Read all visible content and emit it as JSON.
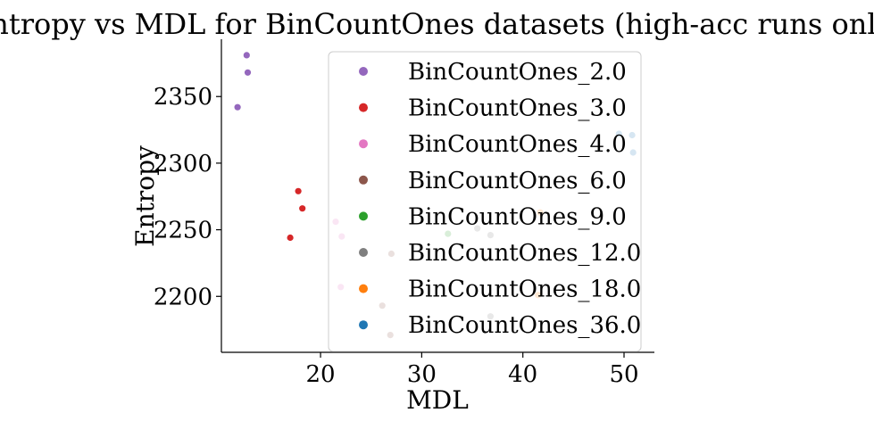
{
  "chart_data": {
    "type": "scatter",
    "title": "Entropy vs MDL for BinCountOnes datasets (high-acc runs only)",
    "xlabel": "MDL",
    "ylabel": "Entropy",
    "xlim": [
      10.2,
      53
    ],
    "ylim": [
      2158,
      2393
    ],
    "xticks": [
      20,
      30,
      40,
      50
    ],
    "yticks": [
      2200,
      2250,
      2300,
      2350
    ],
    "grid": false,
    "legend_position": "right",
    "series": [
      {
        "name": "BinCountOnes_2.0",
        "color": "#9467bd",
        "points": [
          [
            12.7,
            2381
          ],
          [
            12.8,
            2368
          ],
          [
            11.8,
            2342
          ]
        ]
      },
      {
        "name": "BinCountOnes_3.0",
        "color": "#d62728",
        "points": [
          [
            17.8,
            2279
          ],
          [
            18.2,
            2266
          ],
          [
            17.0,
            2244
          ]
        ]
      },
      {
        "name": "BinCountOnes_4.0",
        "color": "#e377c2",
        "points": [
          [
            21.5,
            2256
          ],
          [
            22.1,
            2245
          ],
          [
            22.0,
            2207
          ]
        ]
      },
      {
        "name": "BinCountOnes_6.0",
        "color": "#8c564b",
        "points": [
          [
            27.0,
            2232
          ],
          [
            26.1,
            2193
          ],
          [
            26.9,
            2171
          ]
        ]
      },
      {
        "name": "BinCountOnes_9.0",
        "color": "#2ca02c",
        "points": [
          [
            32.6,
            2247
          ]
        ]
      },
      {
        "name": "BinCountOnes_12.0",
        "color": "#7f7f7f",
        "points": [
          [
            35.5,
            2251
          ],
          [
            36.8,
            2246
          ],
          [
            36.8,
            2185
          ]
        ]
      },
      {
        "name": "BinCountOnes_18.0",
        "color": "#ff7f0e",
        "points": [
          [
            41.7,
            2263
          ],
          [
            41.5,
            2201
          ]
        ]
      },
      {
        "name": "BinCountOnes_36.0",
        "color": "#1f77b4",
        "points": [
          [
            49.5,
            2322
          ],
          [
            50.8,
            2321
          ],
          [
            50.9,
            2308
          ]
        ]
      }
    ]
  }
}
